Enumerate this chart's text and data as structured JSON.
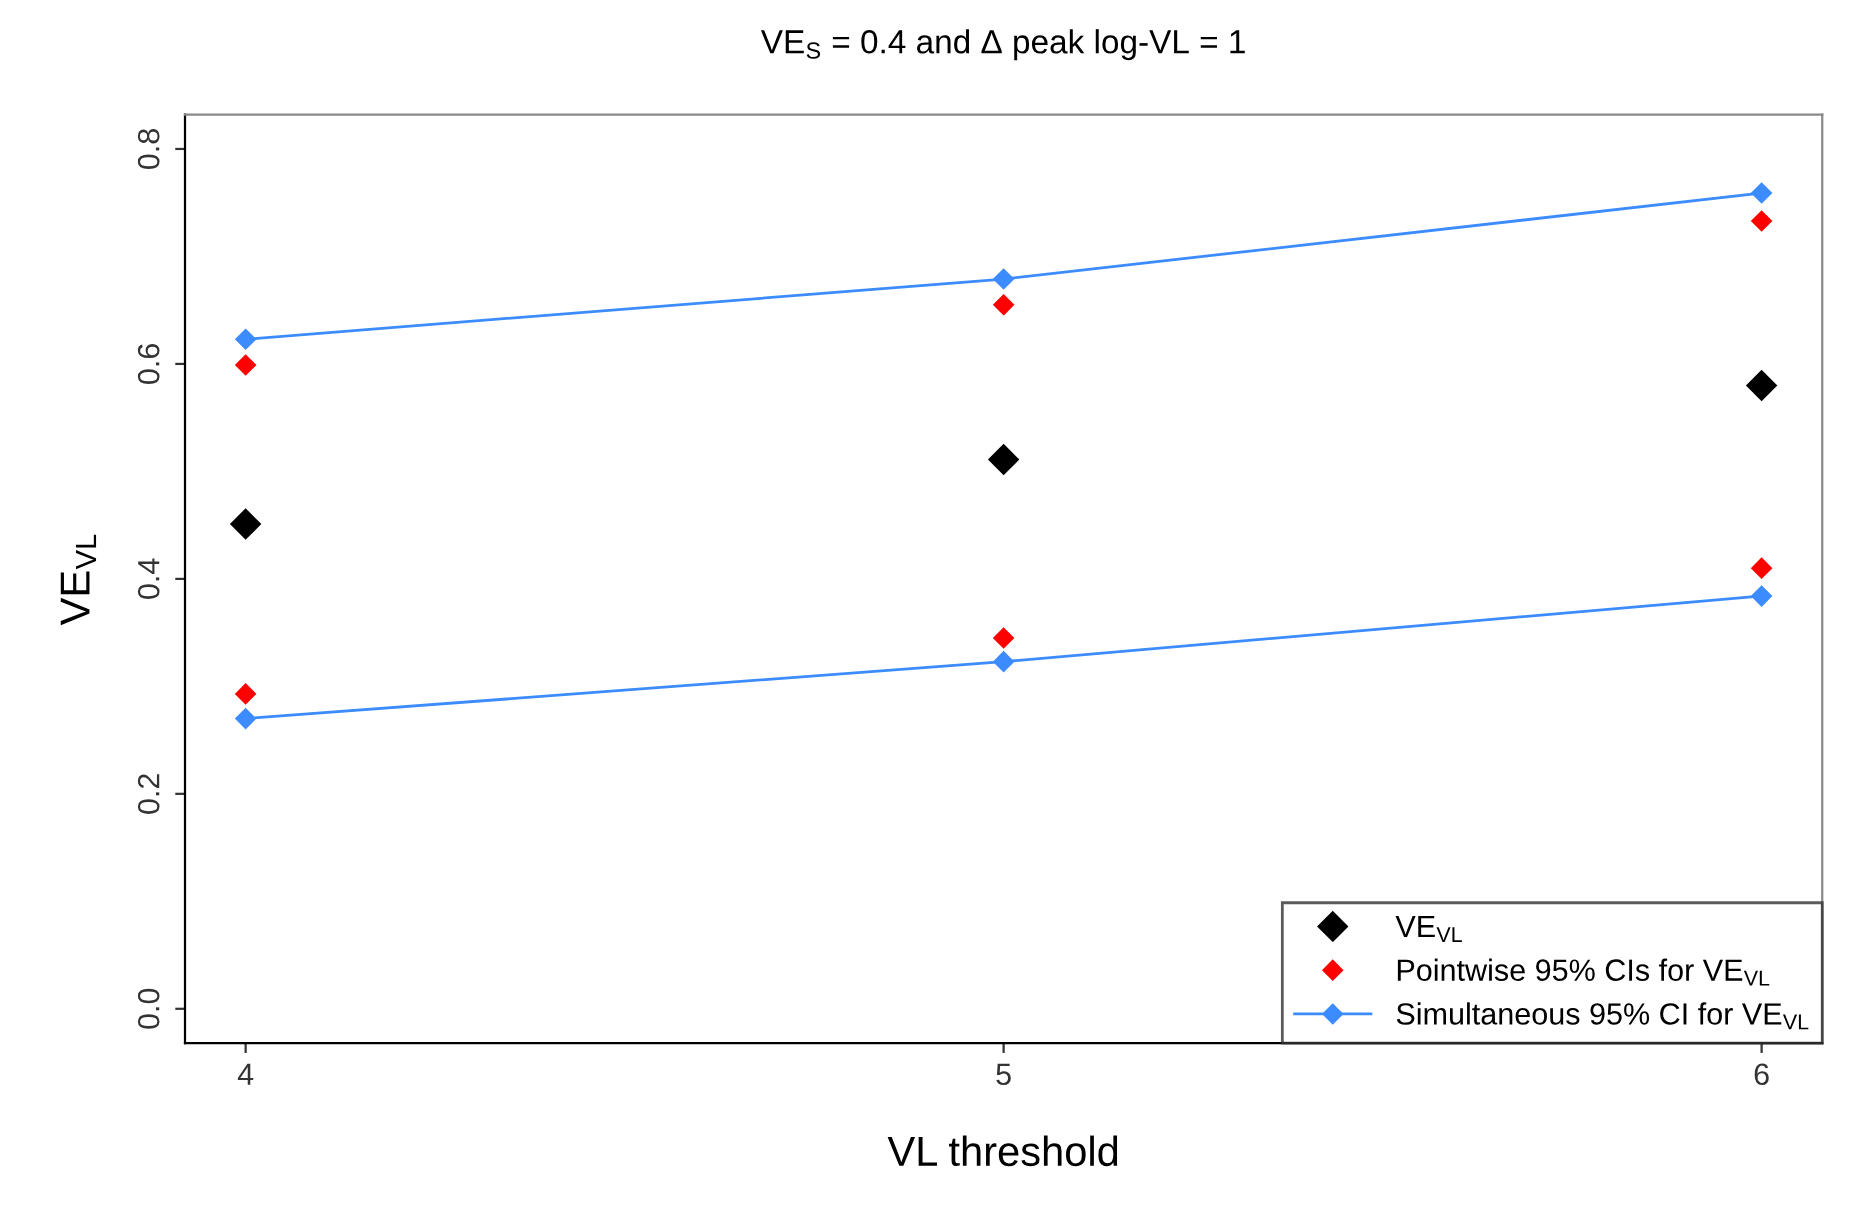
{
  "chart_data": {
    "type": "scatter",
    "title": "VE$_{S}$ = 0.4 and Δ peak log-VL = 1",
    "xlabel": "VL threshold",
    "ylabel": "VE$_{VL}$",
    "x": [
      4,
      5,
      6
    ],
    "xlim": [
      3.92,
      6.08
    ],
    "xticks": [
      4,
      5,
      6
    ],
    "ylim": [
      -0.032,
      0.832
    ],
    "yticks": [
      {
        "value": 0,
        "label": "0.0"
      },
      0.2,
      0.4,
      0.6,
      0.8
    ],
    "grid": false,
    "legend": "bottom right",
    "marker": "diamond",
    "series": [
      {
        "name": "VE$_{VL}$",
        "color": "#000000",
        "values": [
          0.451,
          0.511,
          0.58
        ]
      },
      {
        "name": "Pointwise 95% CIs for VE$_{VL}$",
        "color": "#ff0000",
        "values": [
          0.599,
          0.655,
          0.733
        ]
      },
      {
        "color": "#ff0000",
        "values": [
          0.293,
          0.345,
          0.41
        ]
      },
      {
        "name": "Simultaneous 95% CI for VE$_{VL}$",
        "type": "line",
        "color": "#3c8cff",
        "values": [
          0.623,
          0.679,
          0.759
        ]
      },
      {
        "type": "line",
        "color": "#3c8cff",
        "values": [
          0.27,
          0.323,
          0.384
        ]
      }
    ]
  }
}
